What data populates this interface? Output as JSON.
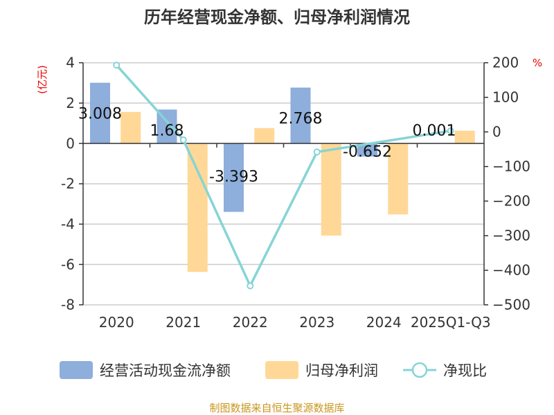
{
  "chart_data": {
    "type": "bar",
    "title": "历年经营现金净额、归母净利润情况",
    "categories": [
      "2020",
      "2021",
      "2022",
      "2023",
      "2024",
      "2025Q1-Q3"
    ],
    "ylabel": "(亿元)",
    "y2label": "%",
    "ylim": [
      -8,
      4
    ],
    "y2lim": [
      -500,
      200
    ],
    "yticks": [
      "4",
      "2",
      "0",
      "-2",
      "-4",
      "-6",
      "-8"
    ],
    "y2ticks": [
      "200",
      "100",
      "0",
      "−100",
      "−200",
      "−300",
      "−400",
      "−500"
    ],
    "grid": true,
    "legend_position": "bottom",
    "series": [
      {
        "name": "经营活动现金流净额",
        "type": "bar",
        "color": "#8eaedb",
        "values": [
          3.008,
          1.68,
          -3.393,
          2.768,
          -0.652,
          0.001
        ],
        "labels": [
          "3.008",
          "1.68",
          "-3.393",
          "2.768",
          "-0.652",
          "0.001"
        ]
      },
      {
        "name": "归母净利润",
        "type": "bar",
        "color": "#ffd897",
        "values": [
          1.56,
          -6.37,
          0.76,
          -4.57,
          -3.52,
          0.63
        ]
      },
      {
        "name": "净现比",
        "type": "line",
        "axis": "right",
        "color": "#86d4d6",
        "values": [
          193,
          -23,
          -445,
          -58,
          null,
          3
        ]
      }
    ],
    "source": "制图数据来自恒生聚源数据库"
  }
}
